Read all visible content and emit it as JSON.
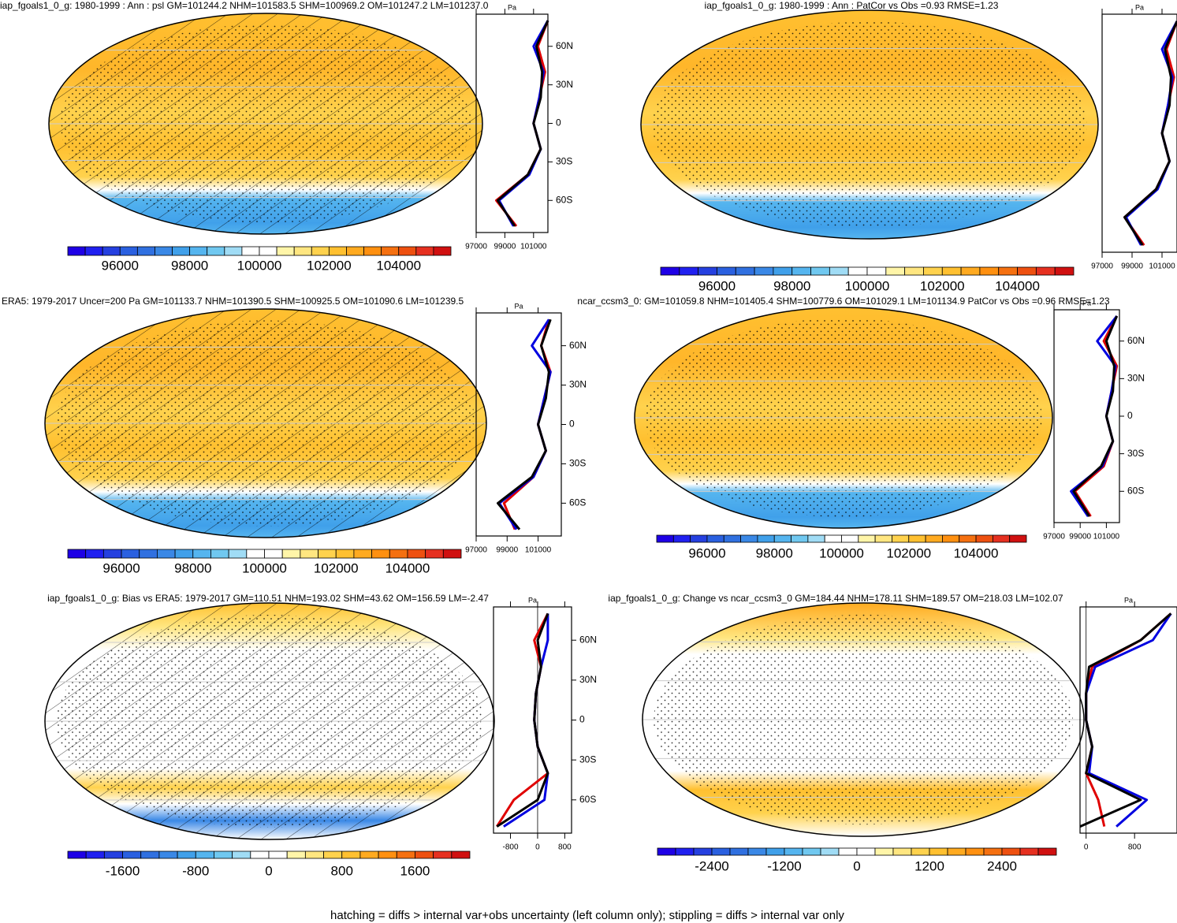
{
  "palette": [
    "#1e00e6",
    "#2020f0",
    "#2540e0",
    "#2a60e0",
    "#3070e0",
    "#3a88e6",
    "#40a0ea",
    "#55b5ef",
    "#70c8f0",
    "#a0dcf5",
    "#ffffff",
    "#ffffff",
    "#fff5a8",
    "#ffe680",
    "#ffd24d",
    "#ffc030",
    "#ffaa20",
    "#ff9010",
    "#f57010",
    "#ee5010",
    "#e63020",
    "#d01010"
  ],
  "footnote": "hatching = diffs > internal var+obs uncertainty (left column only); stippling = diffs > internal var only",
  "chart_data": [
    {
      "type": "map",
      "title": "iap_fgoals1_0_g: 1980-1999 : Ann : psl GM=101244.2 NHM=101583.5 SHM=100969.2 OM=101247.2 LM=101237.0",
      "cbar_lim": [
        94500,
        105500
      ],
      "cbar_ticks": [
        96000,
        98000,
        100000,
        102000,
        104000
      ],
      "xlabel": "Pa",
      "xlim": [
        97000,
        102000
      ],
      "xticks": [
        97000,
        99000,
        101000
      ],
      "ylim": [
        -85,
        85
      ],
      "yticks": [
        {
          "value": 60,
          "label": "60N"
        },
        {
          "value": 30,
          "label": "30N"
        },
        0,
        {
          "value": -30,
          "label": "30S"
        },
        {
          "value": -60,
          "label": "60S"
        }
      ],
      "lat": [
        -80,
        -60,
        -40,
        -20,
        0,
        20,
        40,
        60,
        80
      ],
      "series": [
        {
          "color": "#e00000",
          "values": [
            99800,
            98400,
            100600,
            101500,
            101000,
            101400,
            101800,
            101300,
            102000
          ]
        },
        {
          "color": "#0000e0",
          "values": [
            99600,
            98600,
            100700,
            101500,
            101000,
            101400,
            101700,
            101000,
            102000
          ]
        },
        {
          "color": "#000000",
          "values": [
            99700,
            98500,
            100600,
            101500,
            101000,
            101500,
            101600,
            101200,
            102000
          ]
        }
      ]
    },
    {
      "type": "map",
      "title": "iap_fgoals1_0_g: 1980-1999 : Ann : PatCor vs Obs =0.93 RMSE=1.23",
      "cbar_lim": [
        94500,
        105500
      ],
      "cbar_ticks": [
        96000,
        98000,
        100000,
        102000,
        104000
      ],
      "xlabel": "Pa",
      "xlim": [
        97000,
        102000
      ],
      "xticks": [
        97000,
        99000,
        101000
      ],
      "ylim": [
        -85,
        85
      ],
      "yticks": [],
      "lat": [
        -80,
        -60,
        -40,
        -20,
        0,
        20,
        40,
        60,
        80
      ],
      "series": [
        {
          "color": "#e00000",
          "values": [
            99800,
            98500,
            100600,
            101500,
            101000,
            101400,
            101800,
            101300,
            102000
          ]
        },
        {
          "color": "#0000e0",
          "values": [
            99600,
            98600,
            100700,
            101500,
            101000,
            101400,
            101700,
            101000,
            102000
          ]
        },
        {
          "color": "#000000",
          "values": [
            99700,
            98500,
            100600,
            101500,
            101000,
            101500,
            101600,
            101200,
            102000
          ]
        }
      ]
    },
    {
      "type": "map",
      "title": "ERA5: 1979-2017 Uncer=200 Pa GM=101133.7 NHM=101390.5 SHM=100925.5 OM=101090.6 LM=101239.5",
      "cbar_lim": [
        94500,
        105500
      ],
      "cbar_ticks": [
        96000,
        98000,
        100000,
        102000,
        104000
      ],
      "xlabel": "Pa",
      "xlim": [
        97000,
        102500
      ],
      "xticks": [
        97000,
        99000,
        101000
      ],
      "ylim": [
        -85,
        85
      ],
      "yticks": [
        {
          "value": 60,
          "label": "60N"
        },
        {
          "value": 30,
          "label": "30N"
        },
        0,
        {
          "value": -30,
          "label": "30S"
        },
        {
          "value": -60,
          "label": "60S"
        }
      ],
      "lat": [
        -80,
        -60,
        -40,
        -20,
        0,
        20,
        40,
        60,
        80
      ],
      "series": [
        {
          "color": "#e00000",
          "values": [
            99500,
            98800,
            100700,
            101500,
            101000,
            101400,
            101800,
            101200,
            101700
          ]
        },
        {
          "color": "#0000e0",
          "values": [
            99600,
            98500,
            100700,
            101500,
            101000,
            101400,
            101800,
            100600,
            101700
          ]
        },
        {
          "color": "#000000",
          "values": [
            99800,
            98400,
            100600,
            101500,
            101000,
            101500,
            101700,
            101200,
            101800
          ]
        }
      ]
    },
    {
      "type": "map",
      "title": "ncar_ccsm3_0: GM=101059.8 NHM=101405.4 SHM=100779.6 OM=101029.1 LM=101134.9 PatCor vs Obs =0.96 RMSE=1.23",
      "cbar_lim": [
        94500,
        105500
      ],
      "cbar_ticks": [
        96000,
        98000,
        100000,
        102000,
        104000
      ],
      "xlabel": "Pa",
      "xlim": [
        97000,
        102000
      ],
      "xticks": [
        97000,
        99000,
        101000
      ],
      "ylim": [
        -85,
        85
      ],
      "yticks": [
        {
          "value": 60,
          "label": "60N"
        },
        {
          "value": 30,
          "label": "30N"
        },
        0,
        {
          "value": -30,
          "label": "30S"
        },
        {
          "value": -60,
          "label": "60S"
        }
      ],
      "lat": [
        -80,
        -60,
        -40,
        -20,
        0,
        20,
        40,
        60,
        80
      ],
      "series": [
        {
          "color": "#e00000",
          "values": [
            99800,
            98600,
            100800,
            101500,
            101000,
            101400,
            101800,
            100800,
            101800
          ]
        },
        {
          "color": "#0000e0",
          "values": [
            99600,
            98300,
            100700,
            101500,
            101000,
            101400,
            101700,
            100300,
            101800
          ]
        },
        {
          "color": "#000000",
          "values": [
            99700,
            98500,
            100600,
            101500,
            101000,
            101500,
            101600,
            101000,
            101800
          ]
        }
      ]
    },
    {
      "type": "map",
      "title": "iap_fgoals1_0_g: Bias vs ERA5: 1979-2017 GM=110.51 NHM=193.02 SHM=43.62 OM=156.59 LM=-2.47",
      "cbar_lim": [
        -2200,
        2200
      ],
      "cbar_ticks": [
        -1600,
        -800,
        0,
        800,
        1600
      ],
      "xlabel": "Pa",
      "xlim": [
        -1300,
        1000
      ],
      "xticks": [
        -800,
        0,
        800
      ],
      "ylim": [
        -85,
        85
      ],
      "yticks": [
        {
          "value": 60,
          "label": "60N"
        },
        {
          "value": 30,
          "label": "30N"
        },
        0,
        {
          "value": -30,
          "label": "30S"
        },
        {
          "value": -60,
          "label": "60S"
        }
      ],
      "lat": [
        -80,
        -60,
        -40,
        -20,
        0,
        20,
        40,
        60,
        80
      ],
      "series": [
        {
          "color": "#e00000",
          "values": [
            -1200,
            -700,
            300,
            0,
            -100,
            -50,
            100,
            -100,
            300
          ]
        },
        {
          "color": "#0000e0",
          "values": [
            -1000,
            200,
            300,
            0,
            -100,
            -50,
            100,
            300,
            300
          ]
        },
        {
          "color": "#000000",
          "values": [
            -1200,
            0,
            300,
            0,
            -100,
            -50,
            100,
            0,
            300
          ]
        }
      ]
    },
    {
      "type": "map",
      "title": "iap_fgoals1_0_g: Change vs ncar_ccsm3_0 GM=184.44 NHM=178.11 SHM=189.57 OM=218.03 LM=102.07",
      "cbar_lim": [
        -3300,
        3300
      ],
      "cbar_ticks": [
        -2400,
        -1200,
        0,
        1200,
        2400
      ],
      "xlabel": "Pa",
      "xlim": [
        -100,
        1500
      ],
      "xticks": [
        0,
        800
      ],
      "ylim": [
        -85,
        85
      ],
      "yticks": [],
      "lat": [
        -80,
        -60,
        -40,
        -20,
        0,
        20,
        40,
        60,
        80
      ],
      "series": [
        {
          "color": "#e00000",
          "values": [
            300,
            200,
            0,
            100,
            0,
            0,
            100,
            900,
            1400
          ]
        },
        {
          "color": "#0000e0",
          "values": [
            500,
            1000,
            50,
            100,
            0,
            0,
            150,
            1100,
            1400
          ]
        },
        {
          "color": "#000000",
          "values": [
            -100,
            900,
            0,
            100,
            0,
            0,
            50,
            900,
            1400
          ]
        }
      ]
    }
  ]
}
